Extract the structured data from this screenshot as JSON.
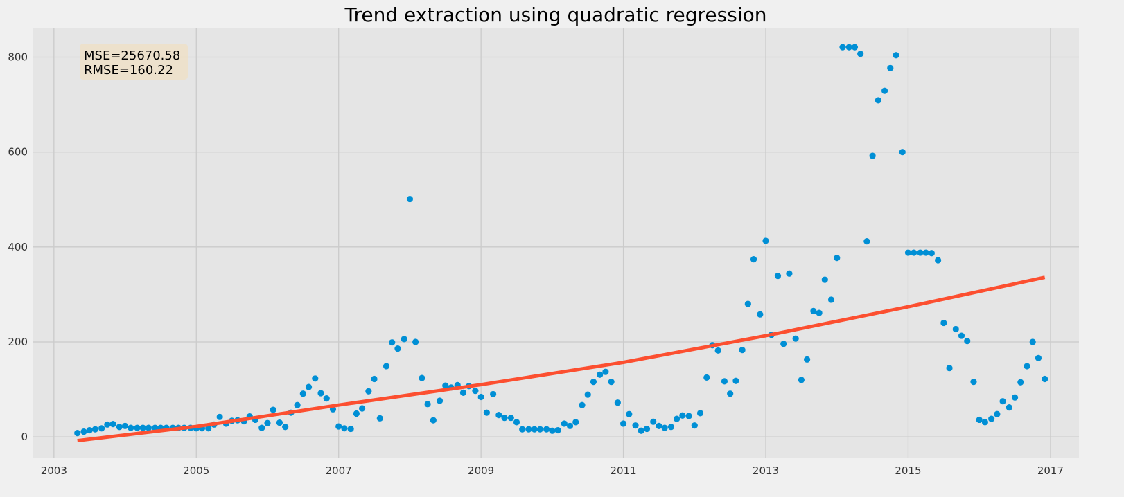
{
  "chart_data": {
    "type": "scatter",
    "title": "Trend extraction using quadratic regression",
    "xlabel": "",
    "ylabel": "",
    "xlim": [
      2002.7,
      2017.4
    ],
    "ylim": [
      -45,
      862
    ],
    "x_ticks": [
      2003,
      2005,
      2007,
      2009,
      2011,
      2013,
      2015,
      2017
    ],
    "x_tick_labels": [
      "2003",
      "2005",
      "2007",
      "2009",
      "2011",
      "2013",
      "2015",
      "2017"
    ],
    "y_ticks": [
      0,
      200,
      400,
      600,
      800
    ],
    "y_tick_labels": [
      "0",
      "200",
      "400",
      "600",
      "800"
    ],
    "grid": true,
    "annotation": {
      "lines": [
        "MSE=25670.58",
        "RMSE=160.22"
      ],
      "placement": "top-left"
    },
    "series": [
      {
        "kind": "scatter",
        "color": "#008fd5",
        "points": [
          [
            2003.33,
            8
          ],
          [
            2003.42,
            11
          ],
          [
            2003.5,
            14
          ],
          [
            2003.58,
            16
          ],
          [
            2003.67,
            18
          ],
          [
            2003.75,
            26
          ],
          [
            2003.83,
            27
          ],
          [
            2003.92,
            21
          ],
          [
            2004.0,
            23
          ],
          [
            2004.08,
            19
          ],
          [
            2004.17,
            19
          ],
          [
            2004.25,
            19
          ],
          [
            2004.33,
            19
          ],
          [
            2004.42,
            19
          ],
          [
            2004.5,
            19
          ],
          [
            2004.58,
            19
          ],
          [
            2004.67,
            19
          ],
          [
            2004.75,
            19
          ],
          [
            2004.83,
            19
          ],
          [
            2004.92,
            19
          ],
          [
            2005.0,
            18
          ],
          [
            2005.08,
            18
          ],
          [
            2005.17,
            18
          ],
          [
            2005.25,
            26
          ],
          [
            2005.33,
            42
          ],
          [
            2005.42,
            28
          ],
          [
            2005.5,
            34
          ],
          [
            2005.58,
            35
          ],
          [
            2005.67,
            33
          ],
          [
            2005.75,
            43
          ],
          [
            2005.83,
            36
          ],
          [
            2005.92,
            19
          ],
          [
            2006.0,
            29
          ],
          [
            2006.08,
            57
          ],
          [
            2006.17,
            30
          ],
          [
            2006.25,
            21
          ],
          [
            2006.33,
            51
          ],
          [
            2006.42,
            67
          ],
          [
            2006.5,
            91
          ],
          [
            2006.58,
            105
          ],
          [
            2006.67,
            123
          ],
          [
            2006.75,
            92
          ],
          [
            2006.83,
            81
          ],
          [
            2006.92,
            58
          ],
          [
            2007.0,
            22
          ],
          [
            2007.08,
            18
          ],
          [
            2007.17,
            17
          ],
          [
            2007.25,
            49
          ],
          [
            2007.33,
            60
          ],
          [
            2007.42,
            96
          ],
          [
            2007.5,
            122
          ],
          [
            2007.58,
            39
          ],
          [
            2007.67,
            149
          ],
          [
            2007.75,
            199
          ],
          [
            2007.83,
            186
          ],
          [
            2007.92,
            206
          ],
          [
            2008.0,
            501
          ],
          [
            2008.08,
            200
          ],
          [
            2008.17,
            124
          ],
          [
            2008.25,
            69
          ],
          [
            2008.33,
            35
          ],
          [
            2008.42,
            76
          ],
          [
            2008.5,
            108
          ],
          [
            2008.58,
            104
          ],
          [
            2008.67,
            109
          ],
          [
            2008.75,
            93
          ],
          [
            2008.83,
            107
          ],
          [
            2008.92,
            97
          ],
          [
            2009.0,
            84
          ],
          [
            2009.08,
            51
          ],
          [
            2009.17,
            90
          ],
          [
            2009.25,
            46
          ],
          [
            2009.33,
            40
          ],
          [
            2009.42,
            40
          ],
          [
            2009.5,
            31
          ],
          [
            2009.58,
            16
          ],
          [
            2009.67,
            16
          ],
          [
            2009.75,
            16
          ],
          [
            2009.83,
            16
          ],
          [
            2009.92,
            16
          ],
          [
            2010.0,
            13
          ],
          [
            2010.08,
            14
          ],
          [
            2010.17,
            28
          ],
          [
            2010.25,
            23
          ],
          [
            2010.33,
            31
          ],
          [
            2010.42,
            67
          ],
          [
            2010.5,
            89
          ],
          [
            2010.58,
            116
          ],
          [
            2010.67,
            131
          ],
          [
            2010.75,
            137
          ],
          [
            2010.83,
            116
          ],
          [
            2010.92,
            72
          ],
          [
            2011.0,
            28
          ],
          [
            2011.08,
            48
          ],
          [
            2011.17,
            24
          ],
          [
            2011.25,
            13
          ],
          [
            2011.33,
            17
          ],
          [
            2011.42,
            32
          ],
          [
            2011.5,
            23
          ],
          [
            2011.58,
            19
          ],
          [
            2011.67,
            21
          ],
          [
            2011.75,
            38
          ],
          [
            2011.83,
            45
          ],
          [
            2011.92,
            44
          ],
          [
            2012.0,
            24
          ],
          [
            2012.08,
            50
          ],
          [
            2012.17,
            125
          ],
          [
            2012.25,
            193
          ],
          [
            2012.33,
            182
          ],
          [
            2012.42,
            117
          ],
          [
            2012.5,
            91
          ],
          [
            2012.58,
            118
          ],
          [
            2012.67,
            183
          ],
          [
            2012.75,
            280
          ],
          [
            2012.83,
            374
          ],
          [
            2012.92,
            258
          ],
          [
            2013.0,
            413
          ],
          [
            2013.08,
            215
          ],
          [
            2013.17,
            339
          ],
          [
            2013.25,
            196
          ],
          [
            2013.33,
            344
          ],
          [
            2013.42,
            207
          ],
          [
            2013.5,
            120
          ],
          [
            2013.58,
            163
          ],
          [
            2013.67,
            265
          ],
          [
            2013.75,
            261
          ],
          [
            2013.83,
            331
          ],
          [
            2013.92,
            289
          ],
          [
            2014.0,
            377
          ],
          [
            2014.08,
            821
          ],
          [
            2014.17,
            821
          ],
          [
            2014.25,
            821
          ],
          [
            2014.33,
            807
          ],
          [
            2014.42,
            412
          ],
          [
            2014.5,
            592
          ],
          [
            2014.58,
            709
          ],
          [
            2014.67,
            729
          ],
          [
            2014.75,
            777
          ],
          [
            2014.83,
            804
          ],
          [
            2014.92,
            600
          ],
          [
            2015.0,
            388
          ],
          [
            2015.08,
            388
          ],
          [
            2015.17,
            388
          ],
          [
            2015.25,
            388
          ],
          [
            2015.33,
            387
          ],
          [
            2015.42,
            372
          ],
          [
            2015.5,
            240
          ],
          [
            2015.58,
            145
          ],
          [
            2015.67,
            227
          ],
          [
            2015.75,
            213
          ],
          [
            2015.83,
            202
          ],
          [
            2015.92,
            116
          ],
          [
            2016.0,
            36
          ],
          [
            2016.08,
            31
          ],
          [
            2016.17,
            38
          ],
          [
            2016.25,
            48
          ],
          [
            2016.33,
            75
          ],
          [
            2016.42,
            62
          ],
          [
            2016.5,
            83
          ],
          [
            2016.58,
            115
          ],
          [
            2016.67,
            149
          ],
          [
            2016.75,
            200
          ],
          [
            2016.83,
            166
          ],
          [
            2016.92,
            122
          ]
        ]
      },
      {
        "kind": "line",
        "color": "#fc4f30",
        "points": [
          [
            2003.33,
            -8
          ],
          [
            2005.0,
            22
          ],
          [
            2007.0,
            67
          ],
          [
            2009.0,
            110
          ],
          [
            2011.0,
            157
          ],
          [
            2013.0,
            213
          ],
          [
            2015.0,
            274
          ],
          [
            2016.92,
            336
          ]
        ]
      }
    ]
  }
}
